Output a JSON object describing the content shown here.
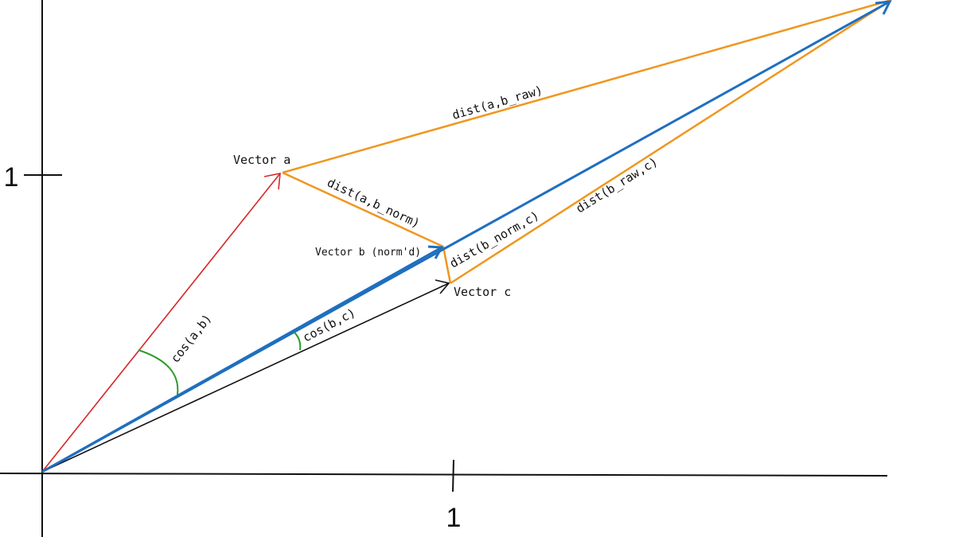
{
  "axes": {
    "x_tick_label": "1",
    "y_tick_label": "1"
  },
  "labels": {
    "vector_a": "Vector a",
    "vector_b": "Vector b (norm'd)",
    "vector_c": "Vector c",
    "dist_a_b_raw": "dist(a,b_raw)",
    "dist_a_b_norm": "dist(a,b_norm)",
    "dist_b_norm_c": "dist(b_norm,c)",
    "dist_b_raw_c": "dist(b_raw,c)",
    "cos_a_b": "cos(a,b)",
    "cos_b_c": "cos(b,c)"
  },
  "colors": {
    "vector_a": "#d62728",
    "vector_b": "#1f6fbf",
    "vector_c": "#111111",
    "distance": "#f0961e",
    "angle": "#2a9d2a",
    "axis": "#111111"
  }
}
